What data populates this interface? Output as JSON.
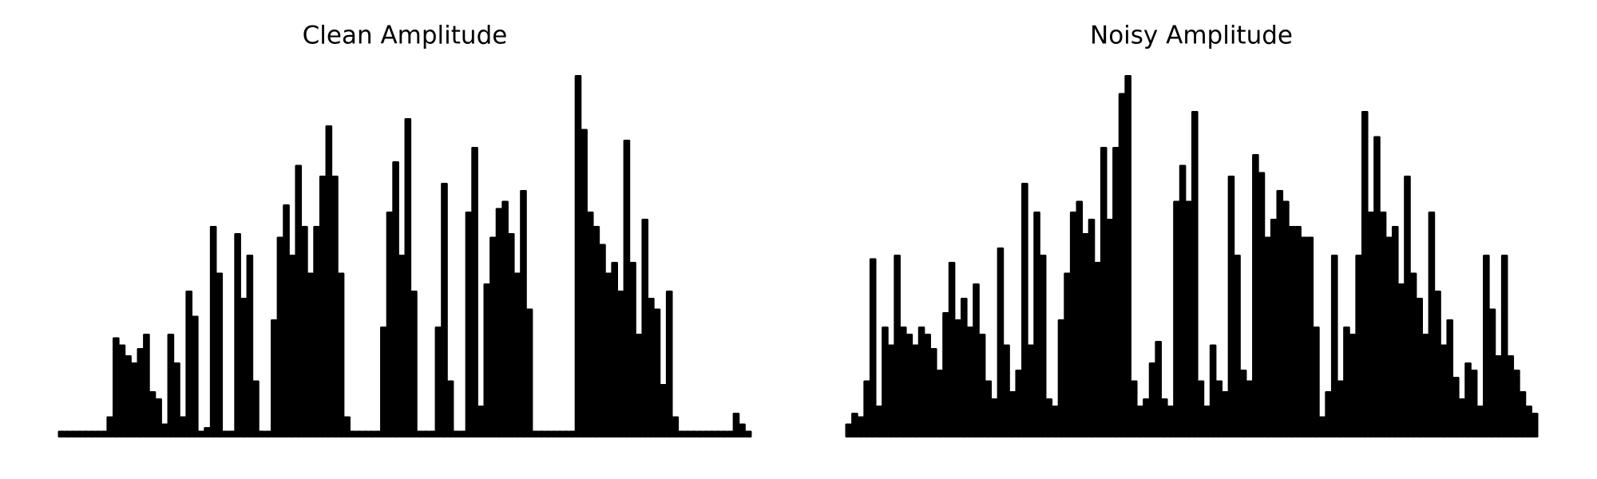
{
  "chart_data": [
    {
      "type": "bar",
      "title": "Clean Amplitude",
      "color": "#000000",
      "ylim": [
        0,
        100
      ],
      "values": [
        1,
        1,
        1,
        1,
        1,
        1,
        1,
        1,
        5,
        27,
        25,
        22,
        20,
        24,
        28,
        12,
        10,
        3,
        28,
        20,
        5,
        40,
        33,
        1,
        2,
        58,
        45,
        1,
        1,
        56,
        38,
        50,
        15,
        1,
        1,
        32,
        55,
        64,
        50,
        75,
        58,
        45,
        58,
        72,
        86,
        72,
        45,
        5,
        1,
        1,
        1,
        1,
        1,
        30,
        62,
        76,
        50,
        88,
        40,
        1,
        1,
        1,
        30,
        70,
        15,
        1,
        1,
        62,
        80,
        8,
        42,
        55,
        63,
        65,
        56,
        45,
        68,
        35,
        1,
        1,
        1,
        1,
        1,
        1,
        1,
        100,
        85,
        62,
        58,
        53,
        45,
        48,
        40,
        82,
        48,
        28,
        60,
        38,
        35,
        14,
        40,
        5,
        1,
        1,
        1,
        1,
        1,
        1,
        1,
        1,
        1,
        6,
        3,
        1
      ]
    },
    {
      "type": "bar",
      "title": "Noisy Amplitude",
      "color": "#000000",
      "ylim": [
        0,
        100
      ],
      "values": [
        3,
        6,
        5,
        15,
        49,
        8,
        30,
        25,
        50,
        30,
        28,
        25,
        30,
        28,
        24,
        18,
        34,
        48,
        32,
        38,
        30,
        42,
        28,
        15,
        10,
        52,
        25,
        12,
        18,
        70,
        25,
        62,
        50,
        10,
        8,
        32,
        45,
        62,
        65,
        56,
        60,
        48,
        80,
        60,
        80,
        95,
        100,
        15,
        8,
        10,
        20,
        26,
        10,
        8,
        65,
        75,
        65,
        90,
        15,
        8,
        25,
        15,
        12,
        72,
        50,
        18,
        15,
        78,
        73,
        55,
        60,
        68,
        65,
        58,
        58,
        55,
        55,
        30,
        5,
        12,
        50,
        15,
        30,
        28,
        50,
        90,
        62,
        83,
        62,
        55,
        58,
        42,
        72,
        45,
        38,
        28,
        62,
        40,
        25,
        32,
        16,
        10,
        20,
        18,
        8,
        50,
        35,
        22,
        50,
        22,
        18,
        12,
        8,
        6
      ]
    }
  ]
}
